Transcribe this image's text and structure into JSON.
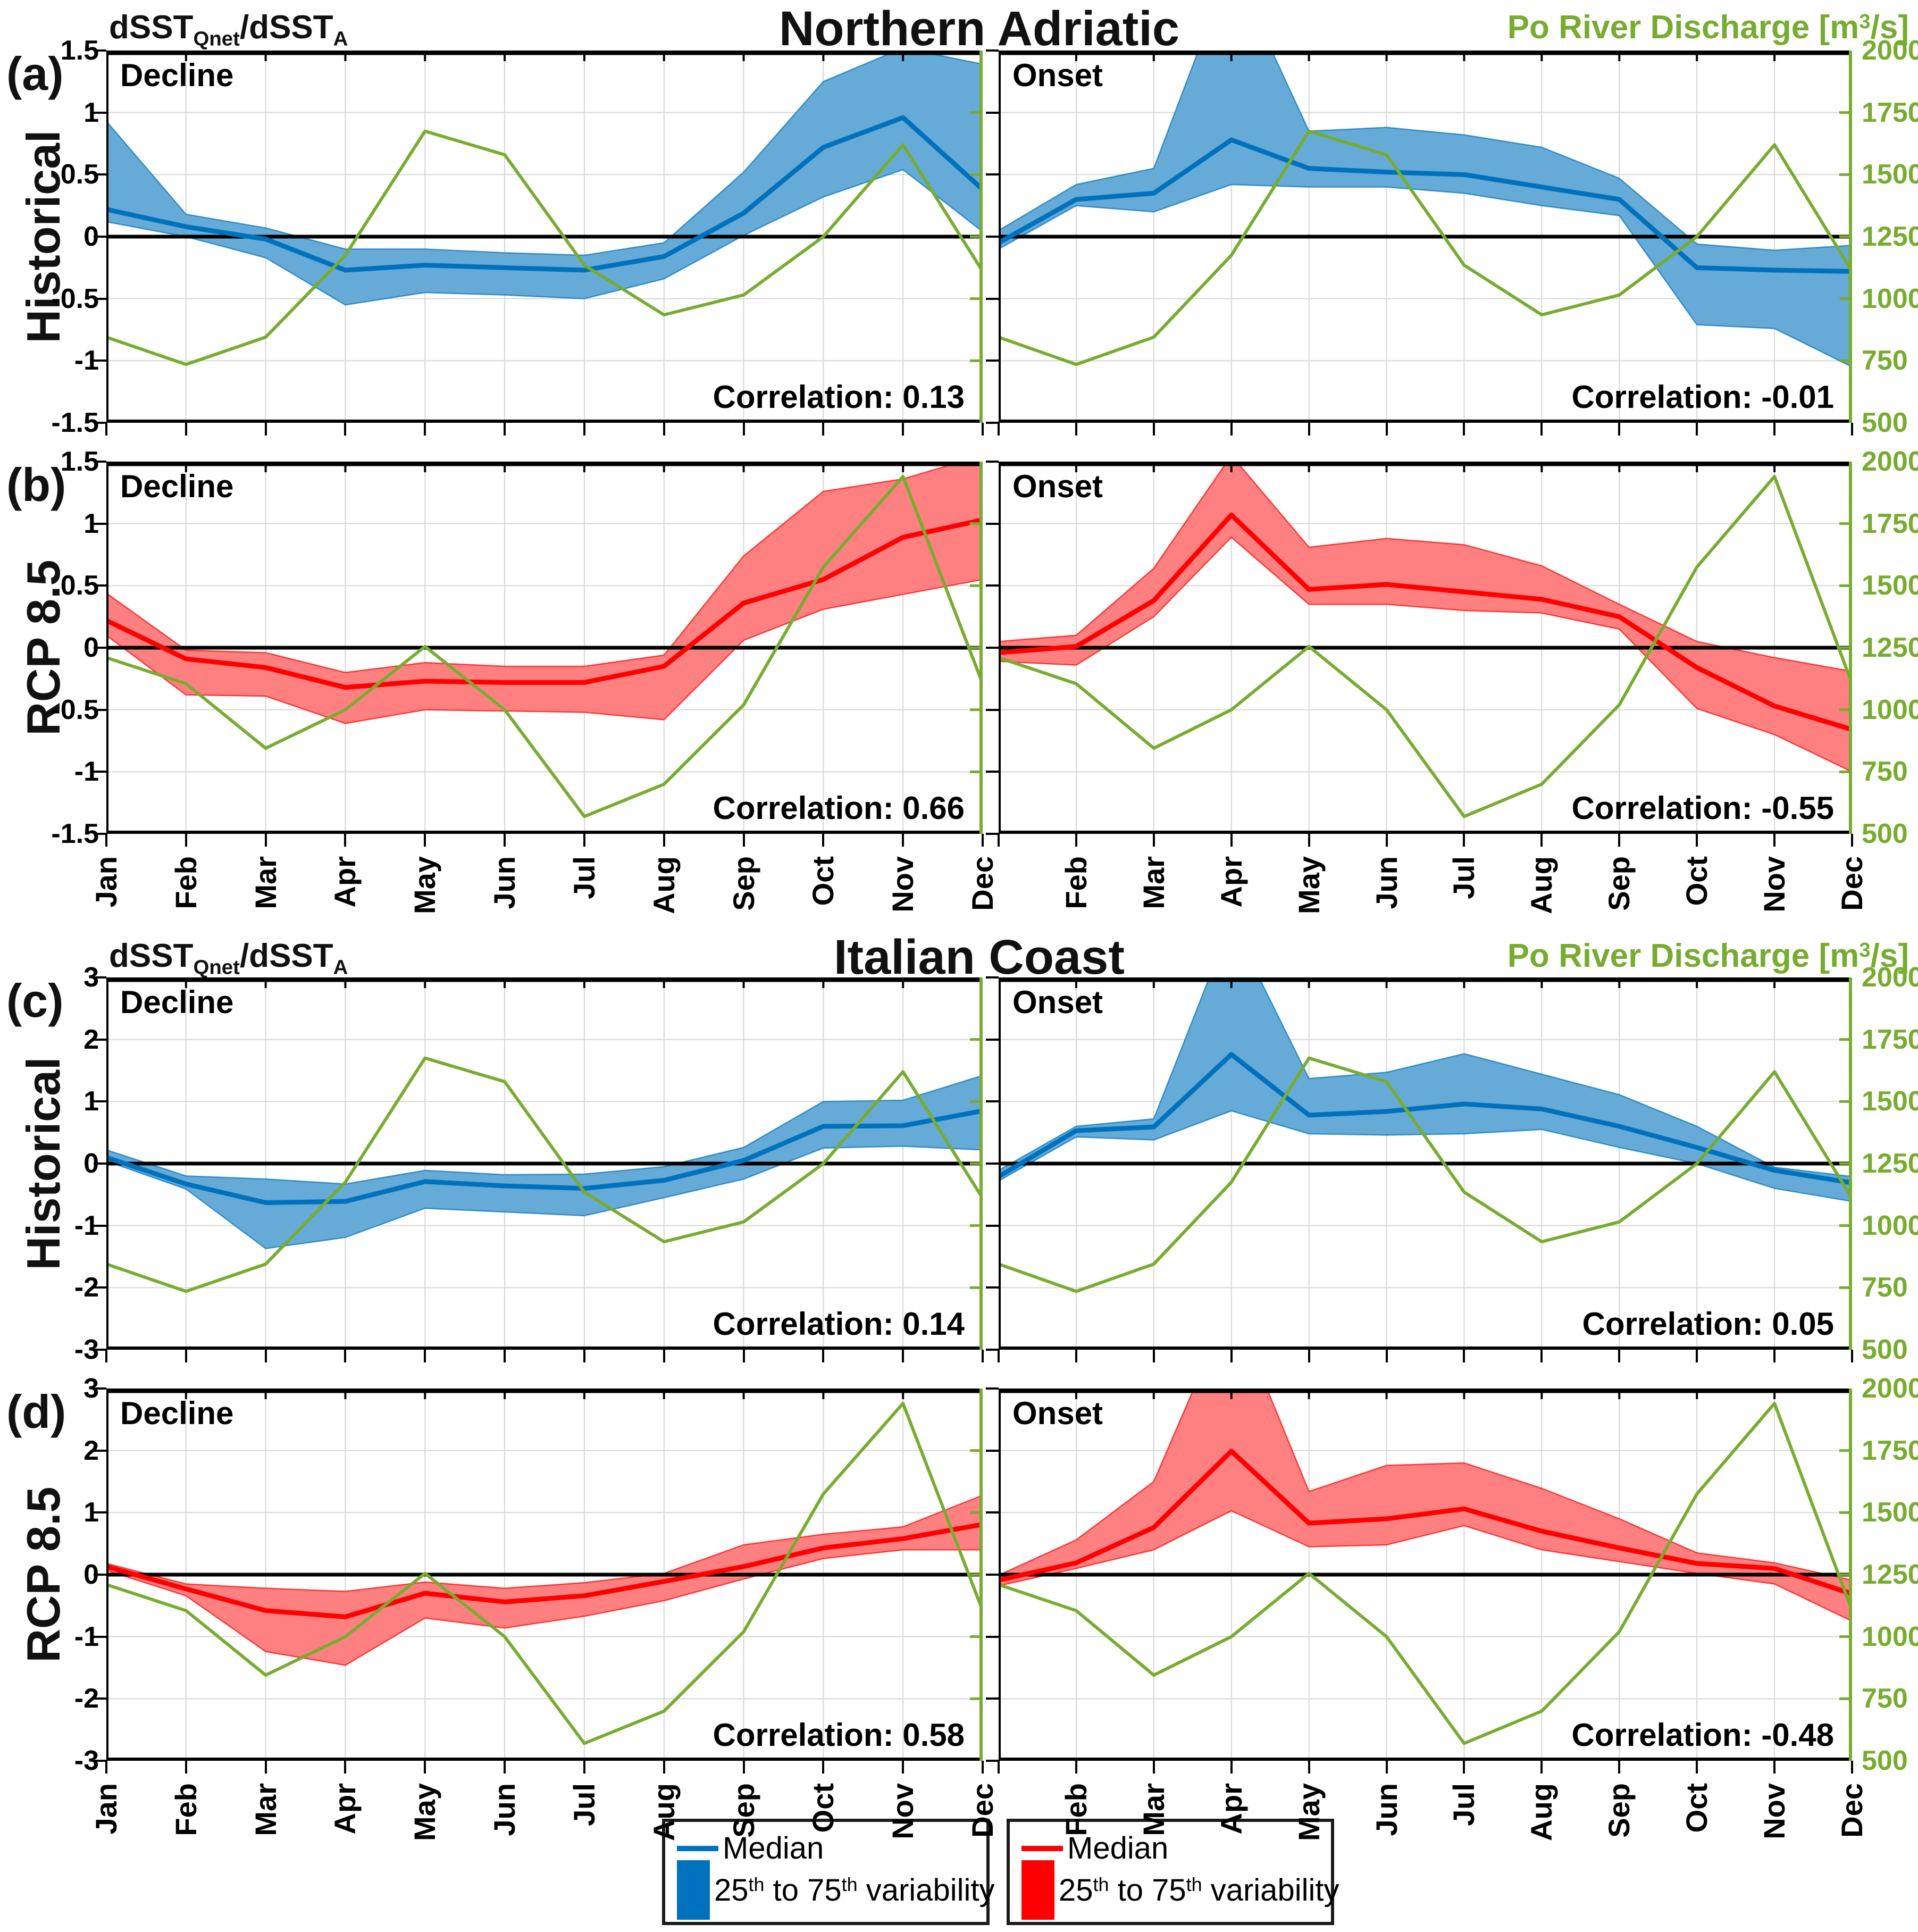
{
  "chart_data": {
    "type": "line",
    "x_categories": [
      "Jan",
      "Feb",
      "Mar",
      "Apr",
      "May",
      "Jun",
      "Jul",
      "Aug",
      "Sep",
      "Oct",
      "Nov",
      "Dec"
    ],
    "y_axis_title_parts": [
      {
        "t": "dSST"
      },
      {
        "t": "Qnet",
        "s": "sub"
      },
      {
        "t": "/dSST"
      },
      {
        "t": "A",
        "s": "sub"
      }
    ],
    "right_axis": {
      "title_parts": [
        {
          "t": "Po River Discharge [m"
        },
        {
          "t": "3",
          "s": "sup"
        },
        {
          "t": "/s]"
        }
      ],
      "min": 500,
      "max": 2000,
      "ticks": [
        2000,
        1750,
        1500,
        1250,
        1000,
        750,
        500
      ],
      "color": "#77AC30"
    },
    "grid": true,
    "zero_line_color": "#000000",
    "sections": [
      {
        "title": "Northern Adriatic",
        "rows": [
          {
            "tag": "(a)",
            "scenario_label": "Historical",
            "line_color": "#0072BD",
            "band_color": "#66ABD7",
            "ylim": [
              -1.5,
              1.5
            ],
            "yticks": [
              1.5,
              1,
              0.5,
              0,
              -0.5,
              -1,
              -1.5
            ],
            "discharge": [
              845,
              735,
              845,
              1175,
              1675,
              1580,
              1135,
              935,
              1015,
              1250,
              1620,
              1110
            ],
            "panels": [
              {
                "phase": "Decline",
                "correlation_text": "Correlation: 0.13",
                "median": [
                  0.22,
                  0.08,
                  -0.02,
                  -0.27,
                  -0.23,
                  -0.25,
                  -0.27,
                  -0.16,
                  0.19,
                  0.72,
                  0.96,
                  0.38
                ],
                "p75": [
                  0.93,
                  0.18,
                  0.07,
                  -0.1,
                  -0.1,
                  -0.13,
                  -0.15,
                  -0.05,
                  0.52,
                  1.25,
                  1.52,
                  1.39
                ],
                "p25": [
                  0.12,
                  0.0,
                  -0.17,
                  -0.55,
                  -0.45,
                  -0.47,
                  -0.5,
                  -0.34,
                  0.01,
                  0.32,
                  0.54,
                  0.04
                ]
              },
              {
                "phase": "Onset",
                "correlation_text": "Correlation: -0.01",
                "median": [
                  -0.05,
                  0.3,
                  0.35,
                  0.78,
                  0.55,
                  0.52,
                  0.5,
                  0.4,
                  0.3,
                  -0.25,
                  -0.27,
                  -0.28
                ],
                "p75": [
                  0.05,
                  0.42,
                  0.55,
                  2.2,
                  0.85,
                  0.88,
                  0.82,
                  0.72,
                  0.47,
                  -0.06,
                  -0.11,
                  -0.07
                ],
                "p25": [
                  -0.1,
                  0.25,
                  0.2,
                  0.42,
                  0.4,
                  0.4,
                  0.35,
                  0.25,
                  0.17,
                  -0.71,
                  -0.74,
                  -1.05
                ]
              }
            ]
          },
          {
            "tag": "(b)",
            "scenario_label": "RCP 8.5",
            "line_color": "#FF0000",
            "band_color": "#FF8080",
            "ylim": [
              -1.5,
              1.5
            ],
            "yticks": [
              1.5,
              1,
              0.5,
              0,
              -0.5,
              -1,
              -1.5
            ],
            "discharge": [
              1210,
              1105,
              845,
              1000,
              1255,
              1000,
              570,
              700,
              1020,
              1575,
              1940,
              1105
            ],
            "panels": [
              {
                "phase": "Decline",
                "correlation_text": "Correlation: 0.66",
                "median": [
                  0.22,
                  -0.09,
                  -0.16,
                  -0.32,
                  -0.27,
                  -0.28,
                  -0.28,
                  -0.15,
                  0.36,
                  0.55,
                  0.89,
                  1.03
                ],
                "p75": [
                  0.44,
                  -0.02,
                  -0.04,
                  -0.2,
                  -0.12,
                  -0.15,
                  -0.15,
                  -0.06,
                  0.74,
                  1.26,
                  1.36,
                  1.55
                ],
                "p25": [
                  0.1,
                  -0.38,
                  -0.39,
                  -0.61,
                  -0.5,
                  -0.51,
                  -0.52,
                  -0.58,
                  0.06,
                  0.31,
                  0.43,
                  0.55
                ]
              },
              {
                "phase": "Onset",
                "correlation_text": "Correlation: -0.55",
                "median": [
                  -0.04,
                  0.01,
                  0.38,
                  1.07,
                  0.47,
                  0.51,
                  0.45,
                  0.39,
                  0.25,
                  -0.16,
                  -0.47,
                  -0.66
                ],
                "p75": [
                  0.05,
                  0.1,
                  0.64,
                  1.55,
                  0.81,
                  0.88,
                  0.83,
                  0.66,
                  0.35,
                  0.05,
                  -0.08,
                  -0.19
                ],
                "p25": [
                  -0.11,
                  -0.14,
                  0.25,
                  0.89,
                  0.35,
                  0.35,
                  0.3,
                  0.28,
                  0.15,
                  -0.49,
                  -0.7,
                  -1.0
                ]
              }
            ]
          }
        ]
      },
      {
        "title": "Italian Coast",
        "rows": [
          {
            "tag": "(c)",
            "scenario_label": "Historical",
            "line_color": "#0072BD",
            "band_color": "#66ABD7",
            "ylim": [
              -3,
              3
            ],
            "yticks": [
              3,
              2,
              1,
              0,
              -1,
              -2,
              -3
            ],
            "discharge": [
              845,
              735,
              845,
              1175,
              1675,
              1580,
              1135,
              935,
              1015,
              1250,
              1620,
              1110
            ],
            "panels": [
              {
                "phase": "Decline",
                "correlation_text": "Correlation: 0.14",
                "median": [
                  0.1,
                  -0.33,
                  -0.63,
                  -0.61,
                  -0.29,
                  -0.36,
                  -0.4,
                  -0.27,
                  0.05,
                  0.6,
                  0.61,
                  0.85
                ],
                "p75": [
                  0.22,
                  -0.2,
                  -0.25,
                  -0.33,
                  -0.11,
                  -0.18,
                  -0.17,
                  -0.05,
                  0.26,
                  1.0,
                  1.02,
                  1.42
                ],
                "p25": [
                  0.04,
                  -0.41,
                  -1.37,
                  -1.19,
                  -0.72,
                  -0.78,
                  -0.84,
                  -0.55,
                  -0.25,
                  0.25,
                  0.28,
                  0.22
                ]
              },
              {
                "phase": "Onset",
                "correlation_text": "Correlation: 0.05",
                "median": [
                  -0.21,
                  0.53,
                  0.59,
                  1.76,
                  0.78,
                  0.84,
                  0.96,
                  0.88,
                  0.6,
                  0.26,
                  -0.11,
                  -0.31
                ],
                "p75": [
                  -0.11,
                  0.6,
                  0.72,
                  3.9,
                  1.37,
                  1.47,
                  1.77,
                  1.44,
                  1.11,
                  0.6,
                  -0.06,
                  -0.21
                ],
                "p25": [
                  -0.28,
                  0.43,
                  0.38,
                  0.85,
                  0.48,
                  0.46,
                  0.48,
                  0.55,
                  0.26,
                  0.0,
                  -0.4,
                  -0.61
                ]
              }
            ]
          },
          {
            "tag": "(d)",
            "scenario_label": "RCP 8.5",
            "line_color": "#FF0000",
            "band_color": "#FF8080",
            "ylim": [
              -3,
              3
            ],
            "yticks": [
              3,
              2,
              1,
              0,
              -1,
              -2,
              -3
            ],
            "discharge": [
              1210,
              1105,
              845,
              1000,
              1255,
              1000,
              570,
              700,
              1020,
              1575,
              1940,
              1105
            ],
            "panels": [
              {
                "phase": "Decline",
                "correlation_text": "Correlation: 0.58",
                "median": [
                  0.13,
                  -0.23,
                  -0.58,
                  -0.68,
                  -0.3,
                  -0.44,
                  -0.34,
                  -0.11,
                  0.13,
                  0.43,
                  0.58,
                  0.81
                ],
                "p75": [
                  0.18,
                  -0.15,
                  -0.22,
                  -0.27,
                  -0.12,
                  -0.22,
                  -0.13,
                  0.02,
                  0.48,
                  0.65,
                  0.77,
                  1.28
                ],
                "p25": [
                  0.07,
                  -0.34,
                  -1.24,
                  -1.46,
                  -0.7,
                  -0.86,
                  -0.67,
                  -0.42,
                  -0.07,
                  0.26,
                  0.4,
                  0.4
                ]
              },
              {
                "phase": "Onset",
                "correlation_text": "Correlation: -0.48",
                "median": [
                  -0.09,
                  0.19,
                  0.76,
                  1.99,
                  0.83,
                  0.9,
                  1.06,
                  0.7,
                  0.43,
                  0.18,
                  0.1,
                  -0.31
                ],
                "p75": [
                  -0.01,
                  0.56,
                  1.5,
                  4.4,
                  1.34,
                  1.76,
                  1.8,
                  1.39,
                  0.9,
                  0.35,
                  0.19,
                  -0.09
                ],
                "p25": [
                  -0.18,
                  0.1,
                  0.4,
                  1.03,
                  0.45,
                  0.48,
                  0.79,
                  0.4,
                  0.21,
                  0.02,
                  -0.15,
                  -0.75
                ]
              }
            ]
          }
        ]
      }
    ],
    "legend": {
      "median_label": "Median",
      "variability_parts": [
        {
          "t": "25"
        },
        {
          "t": "th",
          "s": "sup"
        },
        {
          "t": " to 75"
        },
        {
          "t": "th",
          "s": "sup"
        },
        {
          "t": " variability"
        }
      ],
      "items": [
        {
          "series": "Historical",
          "line_color": "#0072BD"
        },
        {
          "series": "RCP 8.5",
          "line_color": "#FF0000"
        }
      ]
    }
  }
}
